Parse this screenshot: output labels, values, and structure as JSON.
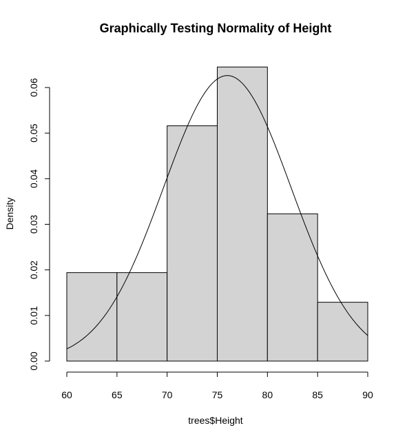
{
  "chart_data": {
    "type": "bar",
    "title": "Graphically Testing Normality of Height",
    "xlabel": "trees$Height",
    "ylabel": "Density",
    "xlim": [
      60,
      90
    ],
    "ylim": [
      0,
      0.065
    ],
    "x_ticks": [
      "60",
      "65",
      "70",
      "75",
      "80",
      "85",
      "90"
    ],
    "y_ticks": [
      "0.00",
      "0.01",
      "0.02",
      "0.03",
      "0.04",
      "0.05",
      "0.06"
    ],
    "bins": [
      {
        "start": 60,
        "end": 65,
        "density": 0.0194
      },
      {
        "start": 65,
        "end": 70,
        "density": 0.0194
      },
      {
        "start": 70,
        "end": 75,
        "density": 0.0516
      },
      {
        "start": 75,
        "end": 80,
        "density": 0.0645
      },
      {
        "start": 80,
        "end": 85,
        "density": 0.0323
      },
      {
        "start": 85,
        "end": 90,
        "density": 0.0129
      }
    ],
    "normal_curve": {
      "mean": 76,
      "sd": 6.37
    },
    "colors": {
      "bar_fill": "#d3d3d3",
      "line": "#000000"
    },
    "grid": false
  }
}
